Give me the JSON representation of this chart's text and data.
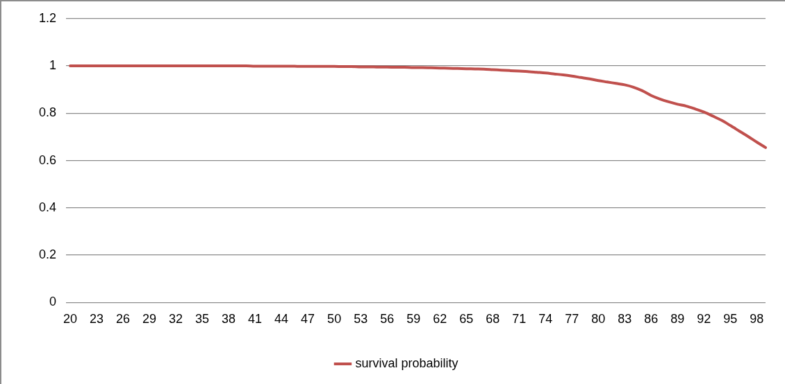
{
  "chart_data": {
    "type": "line",
    "categories": [
      "20",
      null,
      null,
      "23",
      null,
      null,
      "26",
      null,
      null,
      "29",
      null,
      null,
      "32",
      null,
      null,
      "35",
      null,
      null,
      "38",
      null,
      null,
      "41",
      null,
      null,
      "44",
      null,
      null,
      "47",
      null,
      null,
      "50",
      null,
      null,
      "53",
      null,
      null,
      "56",
      null,
      null,
      "59",
      null,
      null,
      "62",
      null,
      null,
      "65",
      null,
      null,
      "68",
      null,
      null,
      "71",
      null,
      null,
      "74",
      null,
      null,
      "77",
      null,
      null,
      "80",
      null,
      null,
      "83",
      null,
      null,
      "86",
      null,
      null,
      "89",
      null,
      null,
      "92",
      null,
      null,
      "95",
      null,
      null,
      "98",
      null
    ],
    "series": [
      {
        "name": "survival probability",
        "color": "#c0504d",
        "values": [
          1,
          1,
          1,
          1,
          1,
          1,
          1,
          1,
          1,
          1,
          1,
          1,
          1,
          1,
          1,
          1,
          1,
          1,
          1,
          1,
          1,
          0.999,
          0.999,
          0.999,
          0.999,
          0.999,
          0.998,
          0.998,
          0.998,
          0.998,
          0.998,
          0.997,
          0.997,
          0.996,
          0.996,
          0.995,
          0.995,
          0.994,
          0.994,
          0.993,
          0.993,
          0.992,
          0.991,
          0.99,
          0.989,
          0.988,
          0.987,
          0.986,
          0.984,
          0.982,
          0.98,
          0.978,
          0.976,
          0.973,
          0.97,
          0.966,
          0.962,
          0.957,
          0.951,
          0.945,
          0.938,
          0.932,
          0.926,
          0.92,
          0.91,
          0.895,
          0.875,
          0.86,
          0.848,
          0.838,
          0.83,
          0.818,
          0.805,
          0.788,
          0.77,
          0.748,
          0.725,
          0.702,
          0.678,
          0.655
        ]
      }
    ],
    "ylim": [
      0,
      1.2
    ],
    "yticks": [
      0,
      0.2,
      0.4,
      0.6,
      0.8,
      1,
      1.2
    ],
    "grid": "y",
    "legend": "bottom",
    "marker": "none",
    "line_style": "solid"
  }
}
